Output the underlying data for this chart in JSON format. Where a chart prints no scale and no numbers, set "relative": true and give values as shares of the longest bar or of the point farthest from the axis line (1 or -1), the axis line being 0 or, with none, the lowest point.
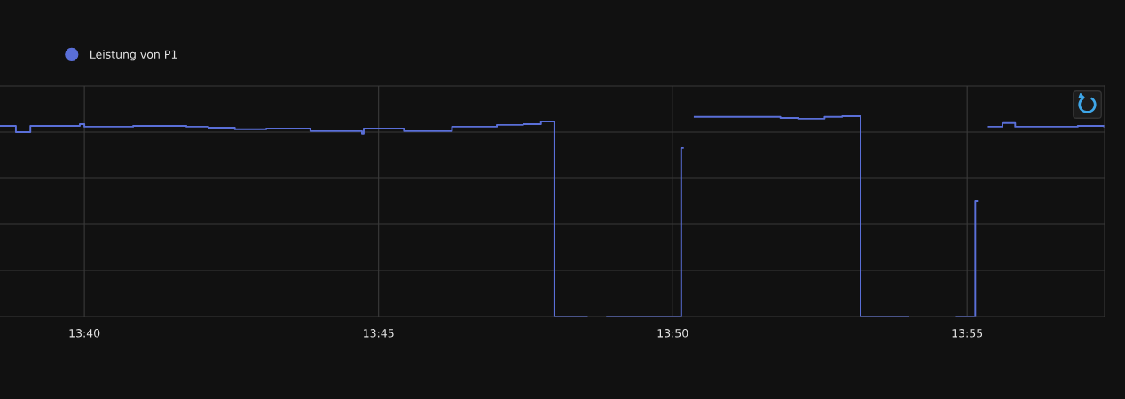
{
  "chart_data": {
    "type": "step",
    "relative": true,
    "x": [
      13.6428,
      13.6473,
      13.6514,
      13.6654,
      13.6667,
      13.6805,
      13.6956,
      13.7018,
      13.7093,
      13.7182,
      13.7307,
      13.742,
      13.7453,
      13.7458,
      13.7572,
      13.7708,
      13.7835,
      13.791,
      13.796,
      13.7998,
      13.809,
      13.8147,
      13.8357,
      13.8362,
      13.8395,
      13.8638,
      13.8688,
      13.8763,
      13.8813,
      13.8865,
      13.9,
      13.9135,
      13.919,
      13.9195,
      13.9228,
      13.9267,
      13.9303,
      13.948,
      13.9555
    ],
    "series": [
      {
        "name": "Leistung von P1",
        "color": "#5a6fd8",
        "values": [
          0.951,
          0.92,
          0.951,
          0.96,
          0.947,
          0.951,
          0.947,
          0.942,
          0.934,
          0.938,
          0.925,
          0.925,
          0.912,
          0.938,
          0.925,
          0.947,
          0.956,
          0.96,
          0.973,
          0,
          null,
          0,
          0.841,
          null,
          0.996,
          0.991,
          0.987,
          0.996,
          1.0,
          0,
          null,
          0,
          0.575,
          null,
          0.947,
          0.965,
          0.947,
          0.951,
          0.947
        ]
      }
    ],
    "xlim": [
      13.6428,
      13.9556
    ],
    "xticks": [
      {
        "value": 13.6667,
        "label": "13:40"
      },
      {
        "value": 13.75,
        "label": "13:45"
      },
      {
        "value": 13.8333,
        "label": "13:50"
      },
      {
        "value": 13.9167,
        "label": "13:55"
      }
    ],
    "grid": true,
    "legend": "top left",
    "marker": "none",
    "line_style": "solid"
  }
}
